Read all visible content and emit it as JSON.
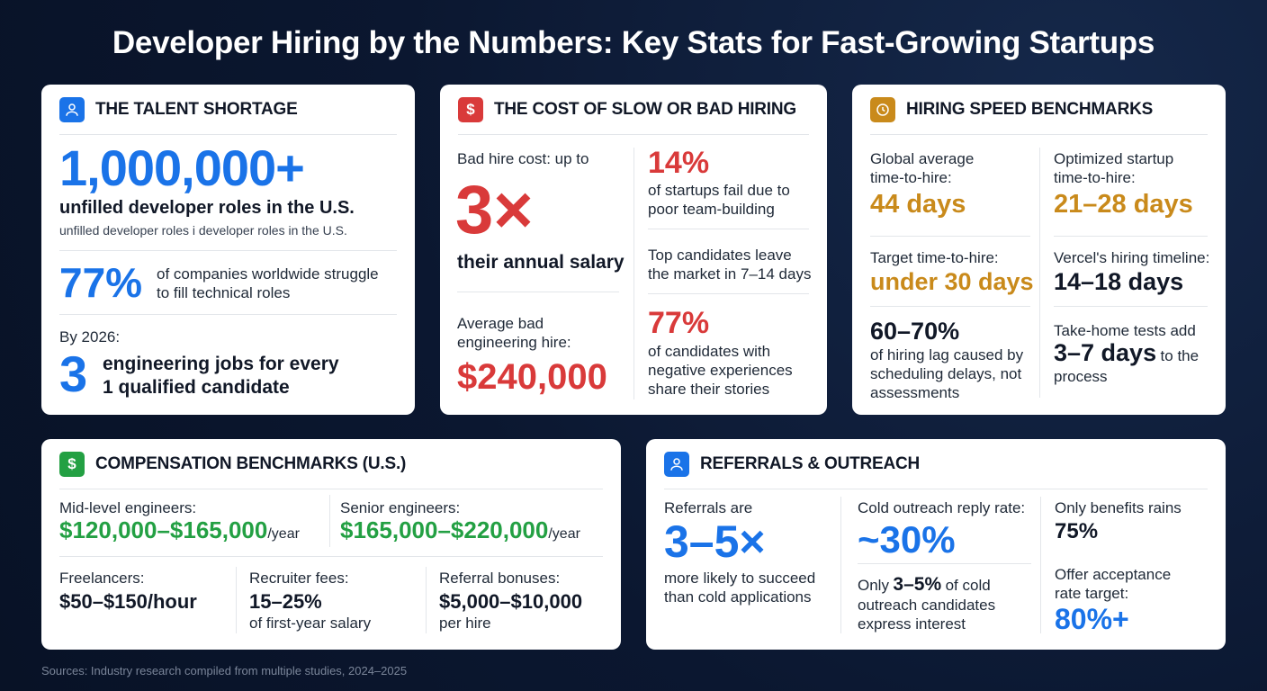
{
  "title": "Developer Hiring by the Numbers: Key Stats for Fast-Growing Startups",
  "talent": {
    "heading": "THE TALENT SHORTAGE",
    "big_number": "1,000,000+",
    "big_caption": "unfilled developer roles in the U.S.",
    "sub_caption": "unfilled developer roles i developer roles in the U.S.",
    "pct": "77%",
    "pct_caption_1": "of companies worldwide struggle",
    "pct_caption_2": "to fill technical roles",
    "by_year": "By 2026:",
    "jobs_number": "3",
    "jobs_caption_1": "engineering jobs for every",
    "jobs_caption_2": "1 qualified candidate"
  },
  "cost": {
    "heading": "THE COST OF SLOW OR BAD HIRING",
    "bad_hire_label": "Bad hire cost: up to",
    "multiplier": "3×",
    "multiplier_caption": "their annual salary",
    "avg_label_1": "Average bad",
    "avg_label_2": "engineering hire:",
    "avg_value": "$240,000",
    "fail_pct": "14%",
    "fail_caption_1": "of startups fail due to",
    "fail_caption_2": "poor team-building",
    "leave_1": "Top candidates leave",
    "leave_2": "the market in 7–14 days",
    "neg_pct": "77%",
    "neg_caption_1": "of candidates with",
    "neg_caption_2": "negative experiences",
    "neg_caption_3": "share their stories"
  },
  "speed": {
    "heading": "HIRING SPEED BENCHMARKS",
    "global_label_1": "Global average",
    "global_label_2": "time-to-hire:",
    "global_value": "44 days",
    "opt_label_1": "Optimized startup",
    "opt_label_2": "time-to-hire:",
    "opt_value": "21–28 days",
    "target_label": "Target time-to-hire:",
    "target_value": "under 30 days",
    "vercel_label": "Vercel's hiring timeline:",
    "vercel_value": "14–18 days",
    "lag_pct": "60–70%",
    "lag_caption_1": "of hiring lag caused by",
    "lag_caption_2": "scheduling delays, not",
    "lag_caption_3": "assessments",
    "takehome_label": "Take-home tests add",
    "takehome_value": "3–7 days",
    "takehome_suffix": "to the",
    "takehome_caption": "process"
  },
  "comp": {
    "heading": "COMPENSATION BENCHMARKS (U.S.)",
    "mid_label": "Mid-level engineers:",
    "mid_value": "$120,000–$165,000",
    "mid_unit": "/year",
    "senior_label": "Senior engineers:",
    "senior_value": "$165,000–$220,000",
    "senior_unit": "/year",
    "free_label": "Freelancers:",
    "free_value": "$50–$150/hour",
    "rec_label": "Recruiter fees:",
    "rec_value": "15–25%",
    "rec_caption": "of first-year salary",
    "ref_label": "Referral bonuses:",
    "ref_value": "$5,000–$10,000",
    "ref_caption": "per hire"
  },
  "referrals": {
    "heading": "REFERRALS & OUTREACH",
    "ref_label": "Referrals are",
    "ref_value": "3–5×",
    "ref_caption_1": "more likely to succeed",
    "ref_caption_2": "than cold applications",
    "cold_label": "Cold outreach reply rate:",
    "cold_value": "~30%",
    "only_prefix": "Only",
    "only_value": "3–5%",
    "only_suffix": "of cold",
    "only_caption_1": "outreach candidates",
    "only_caption_2": "express interest",
    "benefits_label": "Only benefits rains",
    "benefits_value": "75%",
    "offer_label_1": "Offer acceptance",
    "offer_label_2": "rate target:",
    "offer_value": "80%+"
  },
  "sources": "Sources: Industry research compiled from multiple studies, 2024–2025",
  "colors": {
    "blue": "#1a73e8",
    "red": "#d93a3a",
    "gold": "#c98a1b",
    "green": "#23a043",
    "background": "#0b1730"
  },
  "icons": {
    "talent": "person-icon",
    "cost": "dollar-icon",
    "speed": "clock-icon",
    "comp": "dollar-icon",
    "referrals": "person-icon"
  }
}
